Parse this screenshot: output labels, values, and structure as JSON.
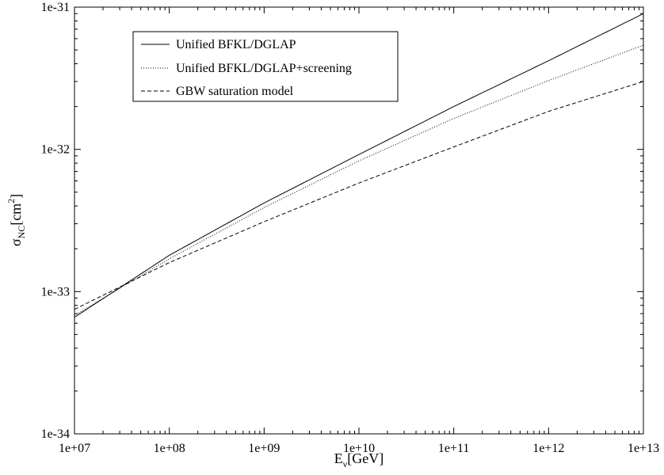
{
  "chart_data": {
    "type": "line",
    "xscale": "log",
    "yscale": "log",
    "xlim": [
      10000000.0,
      10000000000000.0
    ],
    "ylim": [
      1e-34,
      1e-31
    ],
    "x_ticks": [
      "1e+07",
      "1e+08",
      "1e+09",
      "1e+10",
      "1e+11",
      "1e+12",
      "1e+13"
    ],
    "y_ticks": [
      "1e-34",
      "1e-33",
      "1e-32",
      "1e-31"
    ],
    "xlabel": {
      "main": "E",
      "sub": "ν",
      "unit": "[GeV]"
    },
    "ylabel": {
      "main": "σ",
      "sub": "NC",
      "unit_open": "[cm",
      "sup": "2",
      "unit_close": "]"
    },
    "grid": false,
    "legend_position": "top-left",
    "x": [
      10000000.0,
      100000000.0,
      1000000000.0,
      10000000000.0,
      100000000000.0,
      1000000000000.0,
      10000000000000.0
    ],
    "series": [
      {
        "name": "Unified BFKL/DGLAP",
        "style": "solid",
        "values": [
          6.6e-34,
          1.8e-33,
          4.2e-33,
          9.2e-33,
          2e-32,
          4.2e-32,
          9e-32
        ]
      },
      {
        "name": "Unified BFKL/DGLAP+screening",
        "style": "dotted",
        "values": [
          6.8e-34,
          1.7e-33,
          3.9e-33,
          8.3e-33,
          1.65e-32,
          3.05e-32,
          5.4e-32
        ]
      },
      {
        "name": "GBW saturation model",
        "style": "dashed",
        "values": [
          7.5e-34,
          1.6e-33,
          3.1e-33,
          5.8e-33,
          1.04e-32,
          1.85e-32,
          3e-32
        ]
      }
    ]
  }
}
